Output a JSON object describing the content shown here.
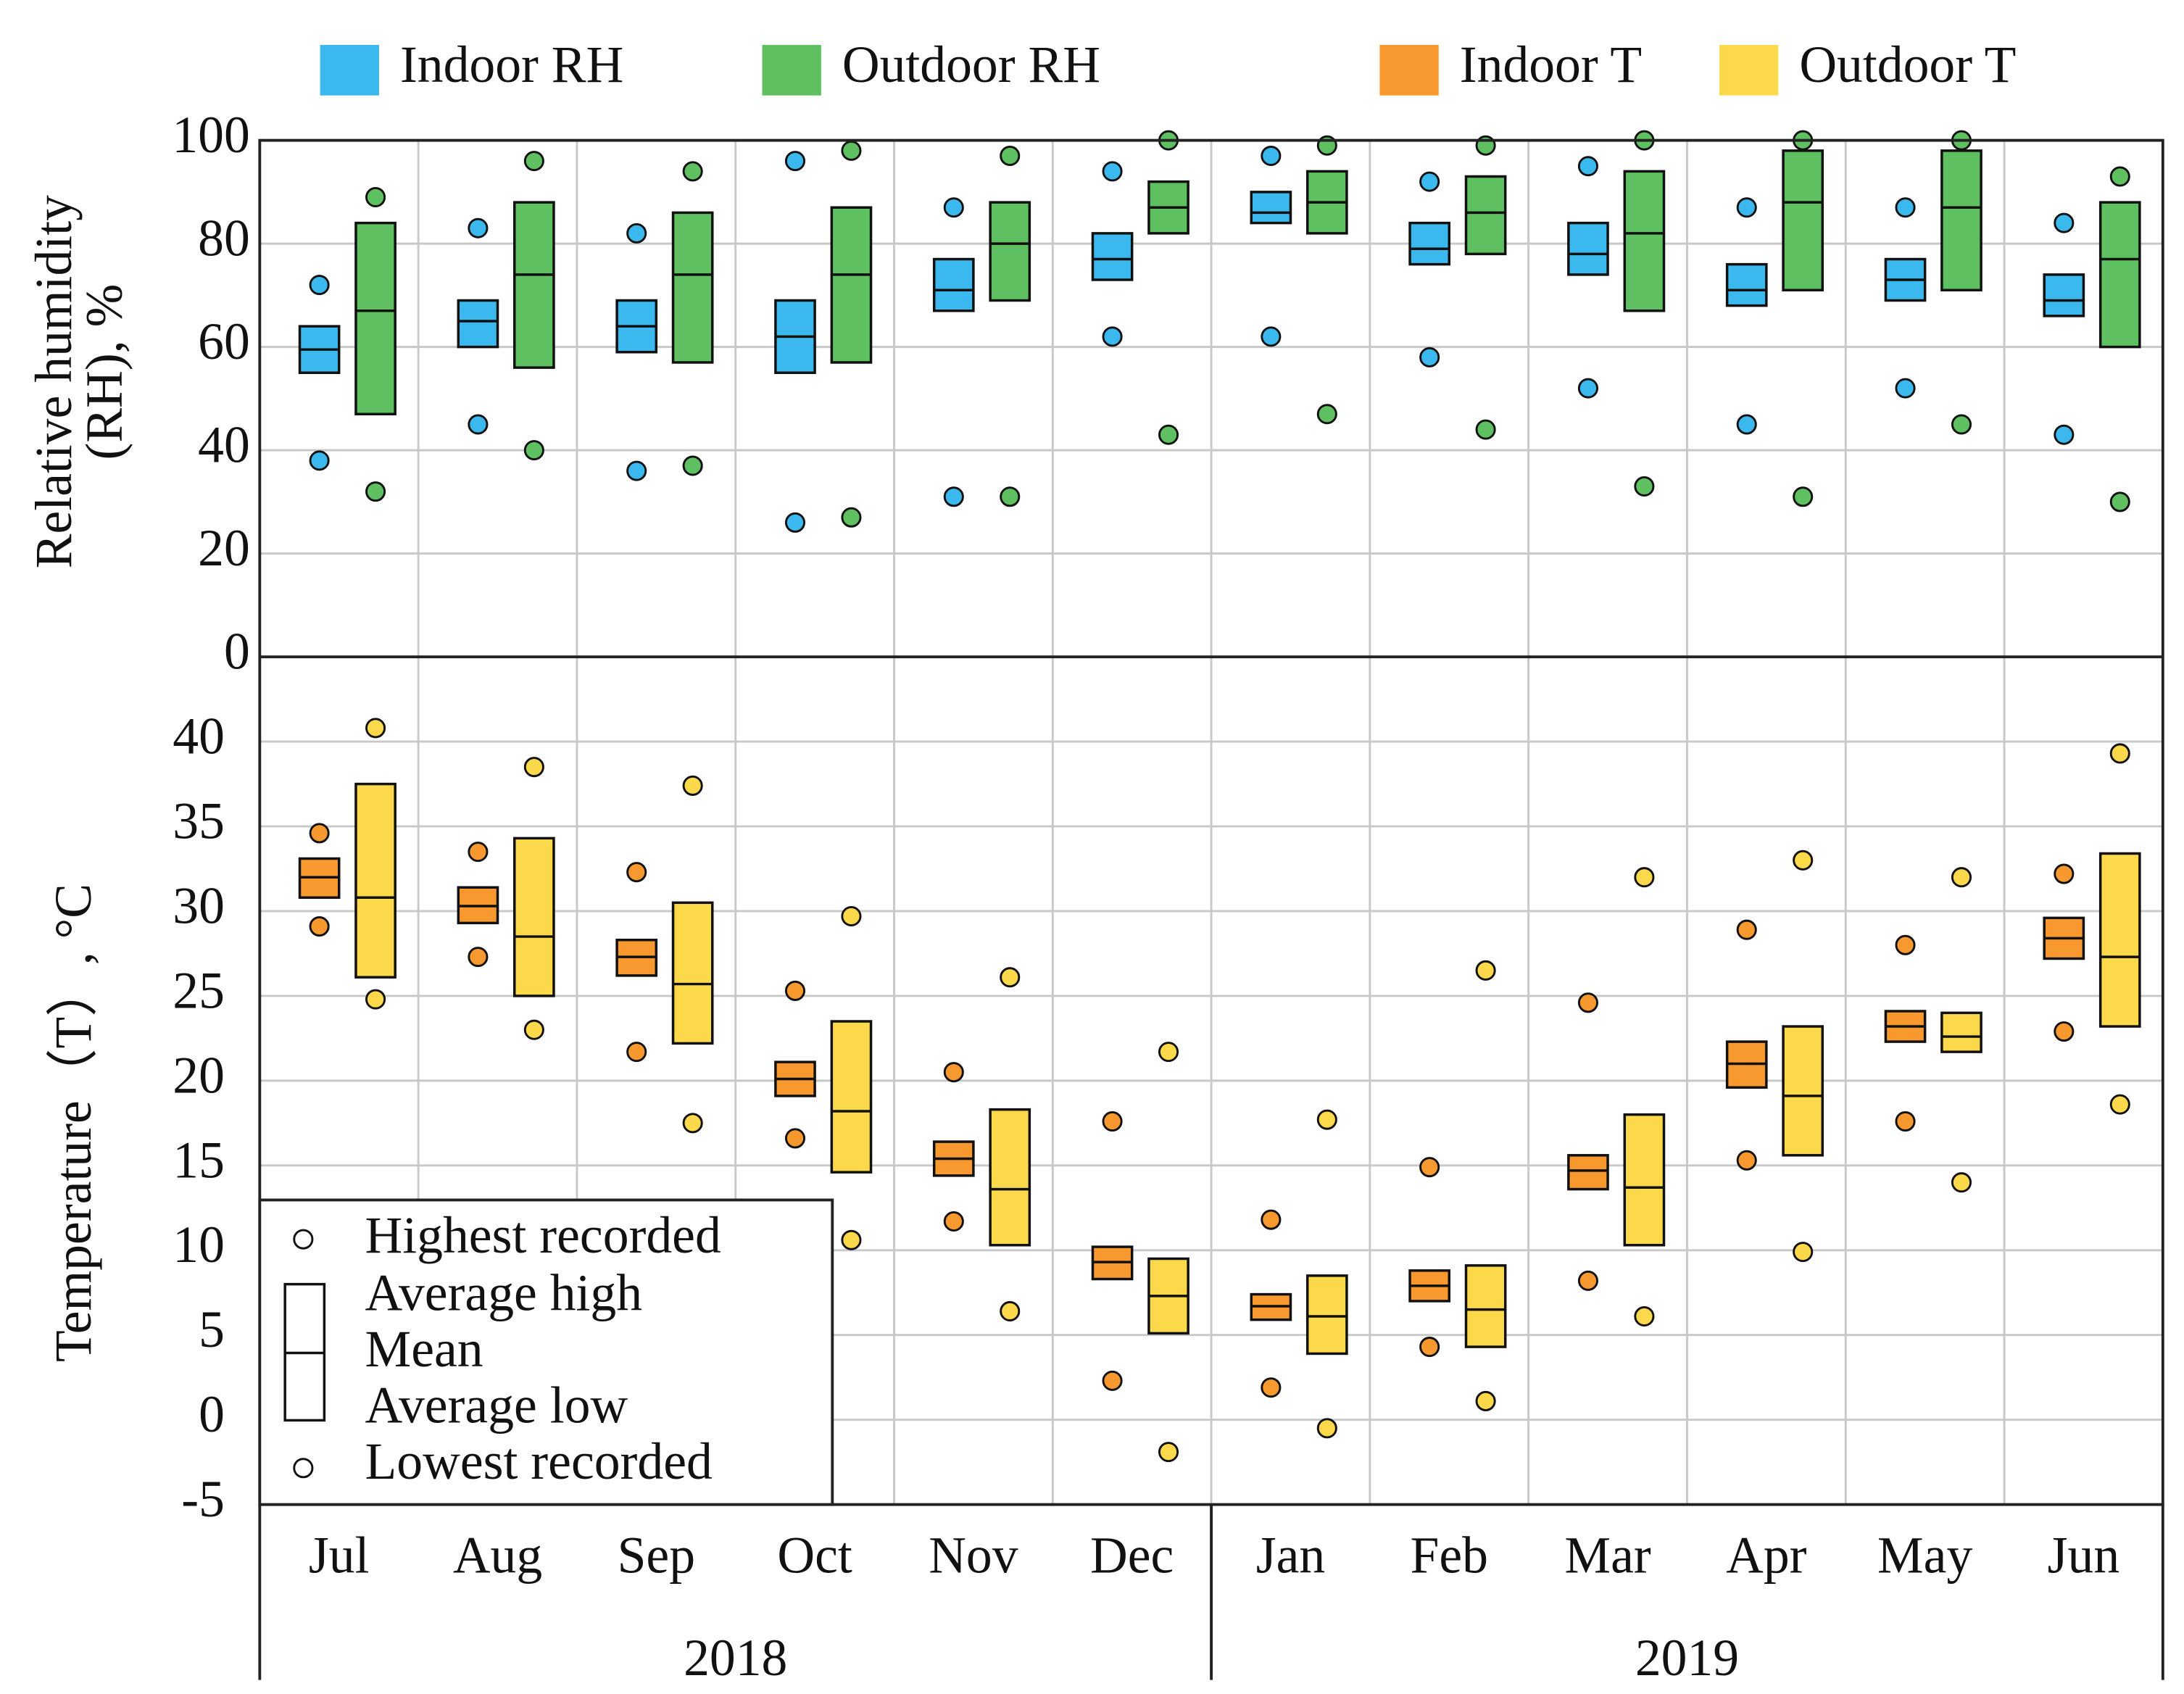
{
  "chart_data": [
    {
      "type": "range",
      "ylabel": [
        "Relative humidity",
        "(RH), %"
      ],
      "ylim": [
        0,
        100
      ],
      "yticks": [
        0,
        20,
        40,
        60,
        80,
        100
      ],
      "grid": true,
      "series": [
        {
          "name": "Indoor RH",
          "color": "#3bb9ee",
          "highest": [
            72,
            83,
            82,
            96,
            87,
            94,
            97,
            92,
            95,
            87,
            87,
            84
          ],
          "average_high": [
            64,
            69,
            69,
            69,
            77,
            82,
            90,
            84,
            84,
            76,
            77,
            74
          ],
          "mean": [
            59.5,
            65,
            64,
            62,
            71,
            77,
            86,
            79,
            78,
            71,
            73,
            69
          ],
          "average_low": [
            55,
            60,
            59,
            55,
            67,
            73,
            84,
            76,
            74,
            68,
            69,
            66
          ],
          "lowest": [
            38,
            45,
            36,
            26,
            31,
            62,
            62,
            58,
            52,
            45,
            52,
            43
          ]
        },
        {
          "name": "Outdoor RH",
          "color": "#5ec060",
          "highest": [
            89,
            96,
            94,
            98,
            97,
            100,
            99,
            99,
            100,
            100,
            100,
            93
          ],
          "average_high": [
            84,
            88,
            86,
            87,
            88,
            92,
            94,
            93,
            94,
            98,
            98,
            88
          ],
          "mean": [
            67,
            74,
            74,
            74,
            80,
            87,
            88,
            86,
            82,
            88,
            87,
            77
          ],
          "average_low": [
            47,
            56,
            57,
            57,
            69,
            82,
            82,
            78,
            67,
            71,
            71,
            60
          ],
          "lowest": [
            32,
            40,
            37,
            27,
            31,
            43,
            47,
            44,
            33,
            31,
            45,
            30
          ]
        }
      ]
    },
    {
      "type": "range",
      "ylabel": "Temperature（T）, °C",
      "ylim": [
        -5,
        45
      ],
      "yticks": [
        -5,
        0,
        5,
        10,
        15,
        20,
        25,
        30,
        35,
        40
      ],
      "grid": true,
      "categories": [
        "Jul",
        "Aug",
        "Sep",
        "Oct",
        "Nov",
        "Dec",
        "Jan",
        "Feb",
        "Mar",
        "Apr",
        "May",
        "Jun"
      ],
      "year_groups": [
        "2018",
        "2019"
      ],
      "key": {
        "highest": "Highest recorded",
        "average_high": "Average high",
        "mean": "Mean",
        "average_low": "Average low",
        "lowest": "Lowest recorded"
      },
      "series": [
        {
          "name": "Indoor T",
          "color": "#f7992f",
          "highest": [
            34.6,
            33.5,
            32.3,
            25.3,
            20.5,
            17.6,
            11.8,
            14.9,
            24.6,
            28.9,
            28.0,
            32.2
          ],
          "average_high": [
            33.1,
            31.4,
            28.3,
            21.1,
            16.4,
            10.2,
            7.4,
            8.8,
            15.6,
            22.3,
            24.1,
            29.6
          ],
          "mean": [
            32,
            30.3,
            27.3,
            20.1,
            15.4,
            9.3,
            6.7,
            7.9,
            14.7,
            21.0,
            23.2,
            28.4
          ],
          "average_low": [
            30.8,
            29.3,
            26.2,
            19.1,
            14.4,
            8.3,
            5.9,
            7.0,
            13.6,
            19.6,
            22.3,
            27.2
          ],
          "lowest": [
            29.1,
            27.3,
            21.7,
            16.6,
            11.7,
            2.3,
            1.9,
            4.3,
            8.2,
            15.3,
            17.6,
            22.9
          ]
        },
        {
          "name": "Outdoor T",
          "color": "#fbd94a",
          "highest": [
            40.8,
            38.5,
            37.4,
            29.7,
            26.1,
            21.7,
            17.7,
            26.5,
            32.0,
            33.0,
            32.0,
            39.3
          ],
          "average_high": [
            37.5,
            34.3,
            30.5,
            23.5,
            18.3,
            9.5,
            8.5,
            9.1,
            18.0,
            23.2,
            24.0,
            33.4
          ],
          "mean": [
            30.8,
            28.5,
            25.7,
            18.2,
            13.6,
            7.3,
            6.1,
            6.5,
            13.7,
            19.1,
            22.6,
            27.3
          ],
          "average_low": [
            26.1,
            25.0,
            22.2,
            14.6,
            10.3,
            5.1,
            3.9,
            4.3,
            10.3,
            15.6,
            21.7,
            23.2
          ],
          "lowest": [
            24.8,
            23.0,
            17.5,
            10.6,
            6.4,
            -1.9,
            -0.5,
            1.1,
            6.1,
            9.9,
            14.0,
            18.6
          ]
        }
      ]
    }
  ]
}
